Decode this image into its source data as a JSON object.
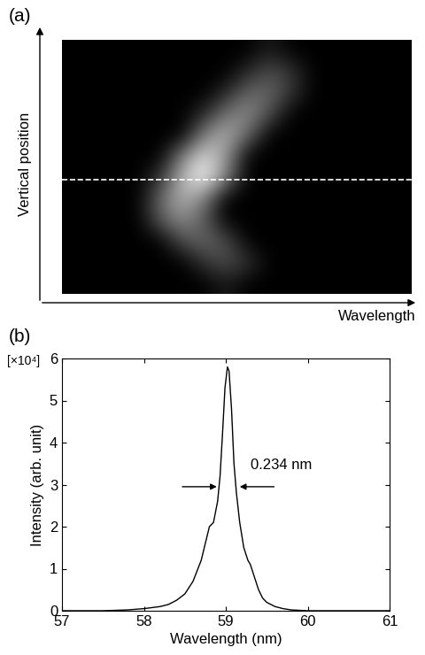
{
  "chart_data": [
    {
      "type": "heatmap",
      "panel": "(a)",
      "x_label": "Wavelength",
      "y_label": "Vertical position",
      "tick_labels": false,
      "zlim": [
        0,
        1
      ],
      "cut_position": 6.1,
      "cells": [
        [
          0,
          0,
          0,
          0,
          0,
          0,
          0,
          0,
          0,
          0.1,
          0,
          0,
          0,
          0,
          0,
          0
        ],
        [
          0,
          0,
          0,
          0,
          0,
          0,
          0,
          0,
          0.15,
          0.3,
          0.2,
          0,
          0,
          0,
          0,
          0
        ],
        [
          0,
          0,
          0,
          0,
          0,
          0,
          0,
          0.15,
          0.4,
          0.4,
          0.2,
          0,
          0,
          0,
          0,
          0
        ],
        [
          0,
          0,
          0,
          0,
          0,
          0,
          0.15,
          0.45,
          0.55,
          0.3,
          0,
          0,
          0,
          0,
          0,
          0
        ],
        [
          0,
          0,
          0,
          0,
          0,
          0,
          0.5,
          0.7,
          0.4,
          0,
          0,
          0,
          0,
          0,
          0,
          0
        ],
        [
          0,
          0,
          0,
          0,
          0,
          0.5,
          0.85,
          0.6,
          0,
          0,
          0,
          0,
          0,
          0,
          0,
          0
        ],
        [
          0,
          0,
          0,
          0,
          0.2,
          0.7,
          1.0,
          0.5,
          0,
          0,
          0,
          0,
          0,
          0,
          0,
          0
        ],
        [
          0,
          0,
          0,
          0,
          0.4,
          0.7,
          0.5,
          0,
          0,
          0,
          0,
          0,
          0,
          0,
          0,
          0
        ],
        [
          0,
          0,
          0,
          0,
          0.35,
          0.55,
          0.35,
          0,
          0,
          0,
          0,
          0,
          0,
          0,
          0,
          0
        ],
        [
          0,
          0,
          0,
          0,
          0,
          0.3,
          0.4,
          0.3,
          0,
          0,
          0,
          0,
          0,
          0,
          0,
          0
        ],
        [
          0,
          0,
          0,
          0,
          0,
          0,
          0.2,
          0.3,
          0.2,
          0,
          0,
          0,
          0,
          0,
          0,
          0
        ],
        [
          0,
          0,
          0,
          0,
          0,
          0,
          0,
          0.1,
          0,
          0,
          0,
          0,
          0,
          0,
          0,
          0
        ]
      ]
    },
    {
      "type": "line",
      "panel": "(b)",
      "x_label": "Wavelength (nm)",
      "y_label": "Intensity (arb. unit)",
      "y_multiplier": "[×10⁴]",
      "color": "#000000",
      "x": [
        57.0,
        57.5,
        57.8,
        58.0,
        58.2,
        58.3,
        58.4,
        58.5,
        58.6,
        58.7,
        58.75,
        58.8,
        58.85,
        58.9,
        58.93,
        58.96,
        58.99,
        59.02,
        59.04,
        59.07,
        59.1,
        59.13,
        59.17,
        59.22,
        59.27,
        59.3,
        59.35,
        59.4,
        59.45,
        59.5,
        59.6,
        59.7,
        59.8,
        60.0,
        61.0
      ],
      "values": [
        0,
        0,
        0.02,
        0.05,
        0.1,
        0.15,
        0.25,
        0.4,
        0.7,
        1.2,
        1.6,
        2.0,
        2.1,
        2.6,
        3.2,
        4.2,
        5.3,
        5.8,
        5.7,
        4.8,
        3.5,
        2.8,
        2.1,
        1.5,
        1.2,
        1.1,
        0.8,
        0.5,
        0.3,
        0.2,
        0.1,
        0.05,
        0.02,
        0,
        0
      ],
      "xlim": [
        57,
        61
      ],
      "xticks": [
        57,
        58,
        59,
        60,
        61
      ],
      "ylim": [
        0,
        6
      ],
      "yticks": [
        0,
        1,
        2,
        3,
        4,
        5,
        6
      ],
      "annotation": {
        "text": "0.234 nm",
        "x": [
          58.92,
          59.14
        ],
        "y": 2.95
      }
    }
  ]
}
